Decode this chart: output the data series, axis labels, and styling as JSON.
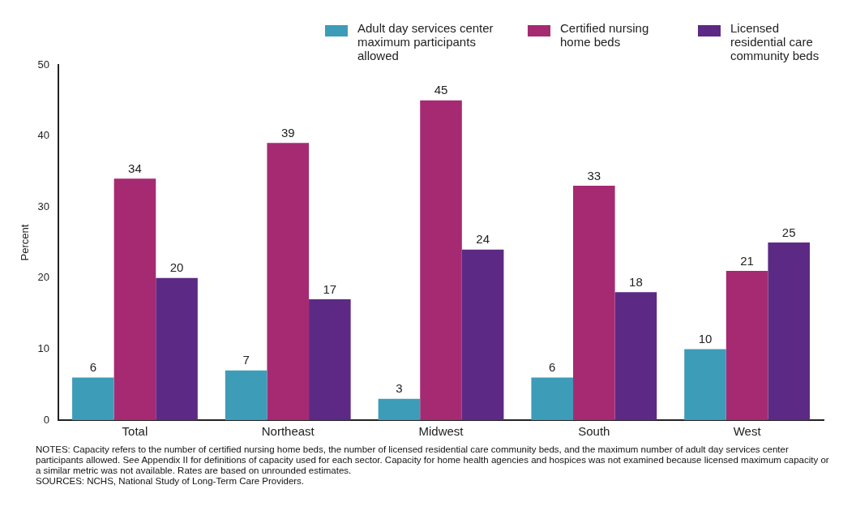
{
  "chart_data": {
    "type": "bar",
    "ylabel": "Percent",
    "categories": [
      "Total",
      "Northeast",
      "Midwest",
      "South",
      "West"
    ],
    "series": [
      {
        "name": "Adult day services center maximum participants allowed",
        "color": "#3d9cb8",
        "values": [
          6,
          7,
          3,
          6,
          10
        ]
      },
      {
        "name": "Certified nursing home beds",
        "color": "#a62a72",
        "values": [
          34,
          39,
          45,
          33,
          21
        ]
      },
      {
        "name": "Licensed residential care community beds",
        "color": "#5c2a84",
        "values": [
          20,
          17,
          24,
          18,
          25
        ]
      }
    ],
    "ylim": [
      0,
      50
    ],
    "yticks": [
      0,
      10,
      20,
      30,
      40,
      50
    ],
    "grid": false,
    "legend": "top right",
    "data_labels": true,
    "annotations": [
      "NOTES: Capacity refers to the number of certified nursing home beds, the number of licensed residential care community beds, and the maximum number of adult day services center participants allowed. See Appendix II for definitions of capacity used for each sector. Capacity for home health agencies and hospices was not examined because licensed maximum capacity or a similar metric was not available. Rates are based on unrounded estimates.",
      "SOURCES: NCHS, National Study of Long-Term Care Providers."
    ]
  }
}
